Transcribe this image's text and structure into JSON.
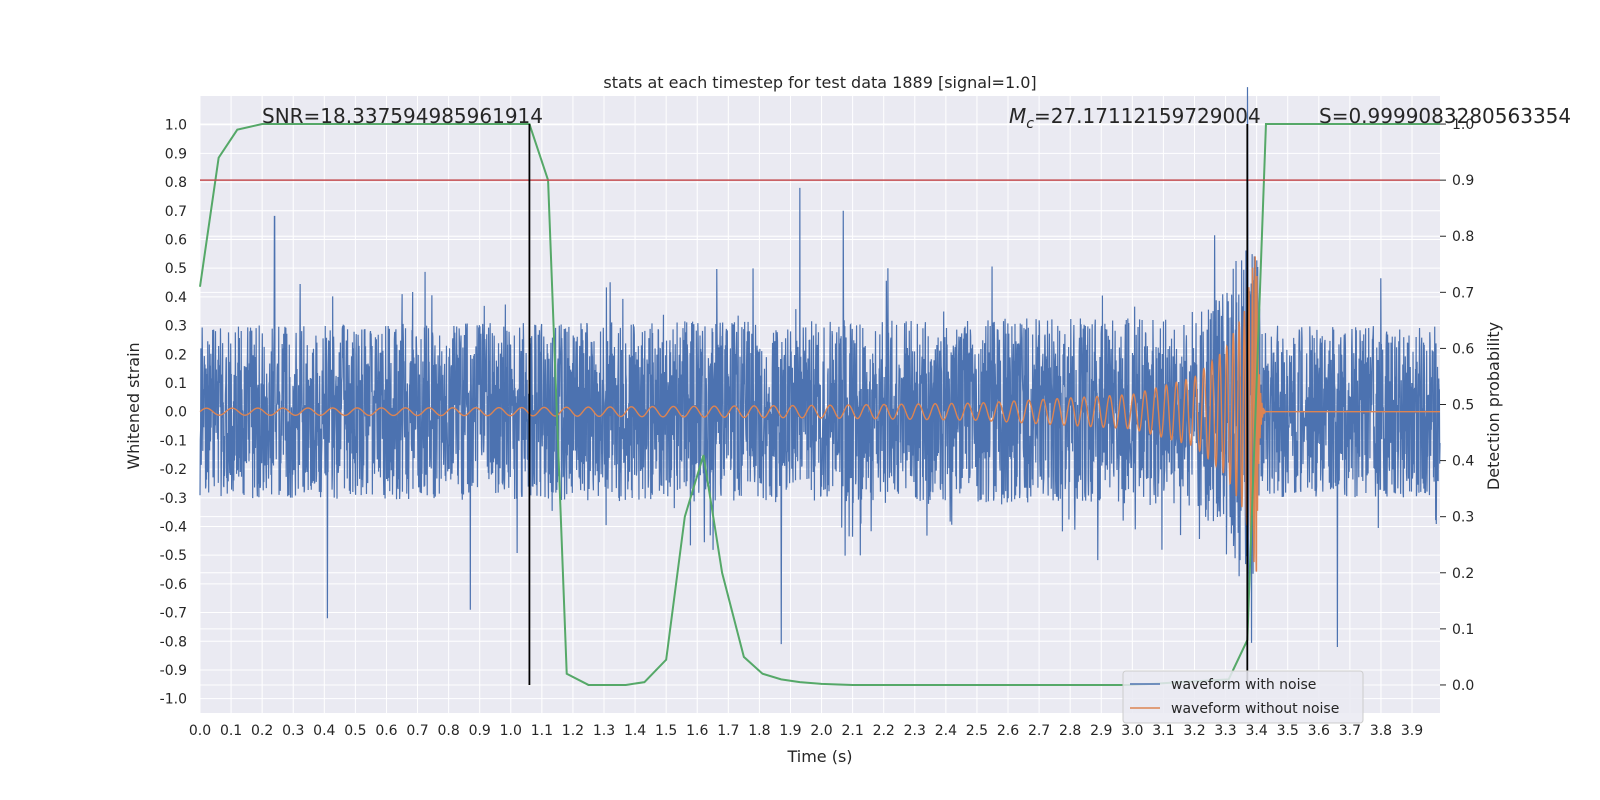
{
  "chart_data": {
    "type": "line",
    "title": "stats at each timestep for test data 1889 [signal=1.0]",
    "xlabel": "Time (s)",
    "ylabel": "Whitened strain",
    "ylabel_right": "Detection probability",
    "xlim": [
      0.0,
      3.99
    ],
    "ylim": [
      -1.05,
      1.1
    ],
    "ylim_right": [
      -0.05,
      1.05
    ],
    "grid": true,
    "legend_position": "lower-right",
    "x_ticks": [
      "0.0",
      "0.1",
      "0.2",
      "0.3",
      "0.4",
      "0.5",
      "0.6",
      "0.7",
      "0.8",
      "0.9",
      "1.0",
      "1.1",
      "1.2",
      "1.3",
      "1.4",
      "1.5",
      "1.6",
      "1.7",
      "1.8",
      "1.9",
      "2.0",
      "2.1",
      "2.2",
      "2.3",
      "2.4",
      "2.5",
      "2.6",
      "2.7",
      "2.8",
      "2.9",
      "3.0",
      "3.1",
      "3.2",
      "3.3",
      "3.4",
      "3.5",
      "3.6",
      "3.7",
      "3.8",
      "3.9"
    ],
    "y_ticks": [
      "1.0",
      "0.9",
      "0.8",
      "0.7",
      "0.6",
      "0.5",
      "0.4",
      "0.3",
      "0.2",
      "0.1",
      "0.0",
      "-0.1",
      "-0.2",
      "-0.3",
      "-0.4",
      "-0.5",
      "-0.6",
      "-0.7",
      "-0.8",
      "-0.9",
      "-1.0"
    ],
    "y_ticks_right": [
      "1.0",
      "0.9",
      "0.8",
      "0.7",
      "0.6",
      "0.5",
      "0.4",
      "0.3",
      "0.2",
      "0.1",
      "0.0"
    ],
    "annotations": {
      "snr": "SNR=18.337594985961914",
      "mc_symbol": "M",
      "mc_sub": "c",
      "mc_value": "=27.17112159729004",
      "s": "S=0.9999083280563354"
    },
    "series": [
      {
        "name": "waveform with noise",
        "axis": "left",
        "color": "#4c72b0",
        "style": "noise",
        "amplitude_envelope": {
          "x": [
            0.0,
            3.2,
            3.3,
            3.37,
            3.4,
            3.42,
            3.99
          ],
          "y": [
            0.3,
            0.33,
            0.45,
            0.75,
            0.55,
            0.3,
            0.3
          ]
        },
        "notable_peaks": [
          {
            "x": 0.24,
            "y": 0.68
          },
          {
            "x": 0.41,
            "y": -0.72
          },
          {
            "x": 0.87,
            "y": -0.69
          },
          {
            "x": 1.93,
            "y": 0.78
          },
          {
            "x": 1.87,
            "y": -0.81
          },
          {
            "x": 2.07,
            "y": 0.7
          },
          {
            "x": 3.66,
            "y": -0.82
          }
        ]
      },
      {
        "name": "waveform without noise",
        "axis": "left",
        "color": "#dd8452",
        "style": "chirp",
        "merger_time": 3.4,
        "start_frequency_hz": 12,
        "amplitude_envelope": {
          "x": [
            0.0,
            1.0,
            2.0,
            2.5,
            3.0,
            3.2,
            3.3,
            3.36,
            3.39,
            3.4,
            3.43
          ],
          "y": [
            0.012,
            0.014,
            0.022,
            0.03,
            0.06,
            0.12,
            0.22,
            0.35,
            0.52,
            0.56,
            0.0
          ]
        }
      },
      {
        "name": "detection probability",
        "axis": "right",
        "color": "#55a868",
        "x": [
          0.0,
          0.06,
          0.12,
          0.2,
          0.3,
          0.6,
          1.0,
          1.06,
          1.12,
          1.18,
          1.25,
          1.31,
          1.37,
          1.43,
          1.5,
          1.56,
          1.62,
          1.68,
          1.75,
          1.81,
          1.87,
          1.93,
          2.0,
          2.1,
          2.5,
          3.0,
          3.31,
          3.37,
          3.43,
          3.99
        ],
        "y": [
          0.71,
          0.94,
          0.99,
          1.0,
          1.0,
          1.0,
          1.0,
          1.0,
          0.9,
          0.02,
          0.0,
          0.0,
          0.0,
          0.005,
          0.045,
          0.3,
          0.41,
          0.2,
          0.05,
          0.02,
          0.01,
          0.005,
          0.002,
          0.0,
          0.0,
          0.0,
          0.01,
          0.08,
          1.0,
          1.0
        ]
      }
    ],
    "reference_lines": [
      {
        "orientation": "horizontal",
        "axis": "right",
        "value": 0.9,
        "color": "#c44e52"
      },
      {
        "orientation": "vertical",
        "x": 1.06,
        "from_right": 0.0,
        "to_right": 1.0,
        "color": "#000000"
      },
      {
        "orientation": "vertical",
        "x": 3.37,
        "from_right": 0.0,
        "to_right": 1.0,
        "color": "#000000"
      }
    ]
  }
}
